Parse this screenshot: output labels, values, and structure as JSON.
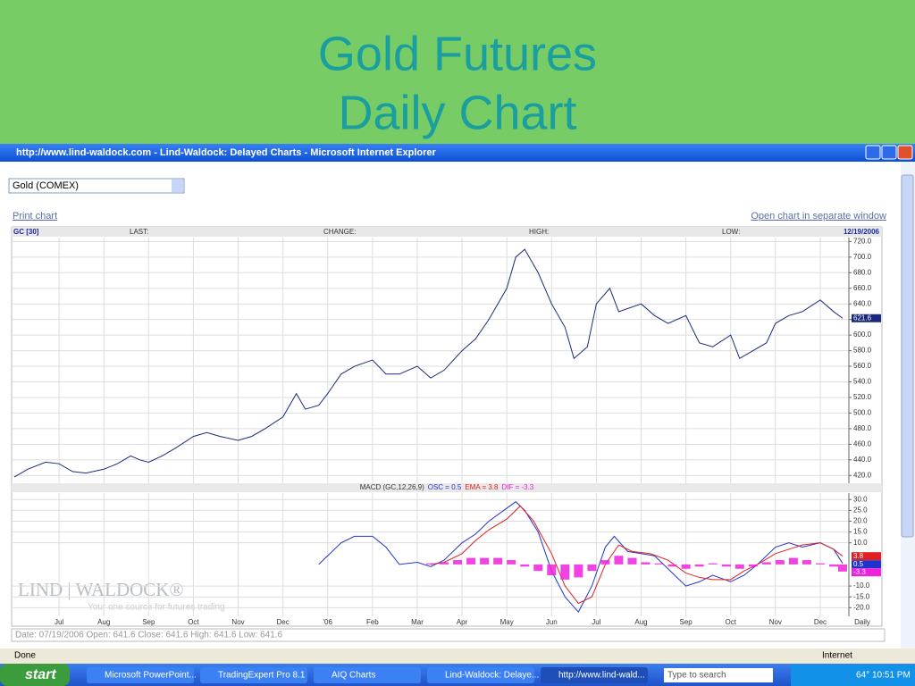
{
  "slide": {
    "title_lines": [
      "Gold Futures",
      "Daily Chart"
    ]
  },
  "browser": {
    "window_title": "http://www.lind-waldock.com - Lind-Waldock: Delayed Charts - Microsoft Internet Explorer",
    "dropdown": "Gold (COMEX)",
    "print_link": "Print chart",
    "open_link": "Open chart in separate window",
    "watermark": "LIND | WALDOCK®",
    "watermark_tagline": "Your one source for futures trading",
    "info_line": "Date: 07/19/2006 Open: 641.6 Close: 641.6 High: 641.6 Low: 641.6",
    "status": "Done",
    "zone": "Internet"
  },
  "taskbar": {
    "start": "start",
    "buttons": [
      "Microsoft PowerPoint...",
      "TradingExpert Pro 8.1",
      "AIQ Charts",
      "Lind-Waldock: Delaye...",
      "http://www.lind-wald..."
    ],
    "search": "Type to search",
    "temperature": "64°",
    "clock": "10:51 PM"
  },
  "chart_data": [
    {
      "type": "line",
      "symbol": "GC [30]",
      "fields": [
        "LAST:",
        "CHANGE:",
        "HIGH:",
        "LOW:"
      ],
      "date": "12/19/2006",
      "xlim": [
        -1.06,
        17.64
      ],
      "ylim": [
        410,
        725
      ],
      "grid": true,
      "yticks": [
        {
          "value": 420,
          "label": "420.0"
        },
        {
          "value": 440,
          "label": "440.0"
        },
        {
          "value": 460,
          "label": "460.0"
        },
        {
          "value": 480,
          "label": "480.0"
        },
        {
          "value": 500,
          "label": "500.0"
        },
        {
          "value": 520,
          "label": "520.0"
        },
        {
          "value": 540,
          "label": "540.0"
        },
        {
          "value": 560,
          "label": "560.0"
        },
        {
          "value": 580,
          "label": "580.0"
        },
        {
          "value": 600,
          "label": "600.0"
        },
        {
          "value": 620,
          "label": "620.0"
        },
        {
          "value": 640,
          "label": "640.0"
        },
        {
          "value": 660,
          "label": "660.0"
        },
        {
          "value": 680,
          "label": "680.0"
        },
        {
          "value": 700,
          "label": "700.0"
        },
        {
          "value": 720,
          "label": "720.0"
        }
      ],
      "series": [
        {
          "color": "#1a2a7a",
          "x": [
            -1.0,
            -0.7,
            -0.3,
            0,
            0.3,
            0.6,
            1.0,
            1.3,
            1.6,
            1.8,
            2.0,
            2.3,
            2.6,
            3.0,
            3.3,
            3.6,
            4.0,
            4.3,
            4.6,
            5.0,
            5.3,
            5.5,
            5.8,
            6.0,
            6.3,
            6.6,
            7.0,
            7.3,
            7.6,
            8.0,
            8.3,
            8.6,
            9.0,
            9.3,
            9.6,
            10.0,
            10.2,
            10.4,
            10.7,
            11.0,
            11.3,
            11.5,
            11.8,
            12.0,
            12.3,
            12.5,
            13.0,
            13.3,
            13.6,
            14.0,
            14.3,
            14.6,
            15.0,
            15.2,
            15.5,
            15.8,
            16.0,
            16.3,
            16.6,
            17.0,
            17.3,
            17.5
          ],
          "values": [
            418,
            428,
            437,
            435,
            425,
            423,
            428,
            435,
            445,
            440,
            437,
            445,
            455,
            470,
            475,
            470,
            465,
            470,
            480,
            495,
            525,
            505,
            510,
            525,
            550,
            560,
            568,
            550,
            550,
            560,
            545,
            555,
            580,
            595,
            620,
            660,
            700,
            710,
            680,
            640,
            610,
            570,
            585,
            640,
            660,
            630,
            640,
            625,
            615,
            625,
            590,
            585,
            600,
            570,
            580,
            590,
            615,
            625,
            630,
            645,
            630,
            621.6
          ]
        }
      ]
    },
    {
      "type": "line",
      "title": "MACD (GC,12,26,9)",
      "x_label": "Daily",
      "xlim": [
        -1.06,
        17.64
      ],
      "ylim": [
        -24,
        33
      ],
      "grid": true,
      "xticks": [
        {
          "value": 0,
          "label": "Jul"
        },
        {
          "value": 1,
          "label": "Aug"
        },
        {
          "value": 2,
          "label": "Sep"
        },
        {
          "value": 3,
          "label": "Oct"
        },
        {
          "value": 4,
          "label": "Nov"
        },
        {
          "value": 5,
          "label": "Dec"
        },
        {
          "value": 6,
          "label": "'06"
        },
        {
          "value": 7,
          "label": "Feb"
        },
        {
          "value": 8,
          "label": "Mar"
        },
        {
          "value": 9,
          "label": "Apr"
        },
        {
          "value": 10,
          "label": "May"
        },
        {
          "value": 11,
          "label": "Jun"
        },
        {
          "value": 12,
          "label": "Jul"
        },
        {
          "value": 13,
          "label": "Aug"
        },
        {
          "value": 14,
          "label": "Sep"
        },
        {
          "value": 15,
          "label": "Oct"
        },
        {
          "value": 16,
          "label": "Nov"
        },
        {
          "value": 17,
          "label": "Dec"
        }
      ],
      "yticks": [
        {
          "value": 30,
          "label": "30.0"
        },
        {
          "value": 25,
          "label": "25.0"
        },
        {
          "value": 20,
          "label": "20.0"
        },
        {
          "value": 15,
          "label": "15.0"
        },
        {
          "value": 10,
          "label": "10.0"
        },
        {
          "value": -10,
          "label": "-10.0"
        },
        {
          "value": -15,
          "label": "-15.0"
        },
        {
          "value": -20,
          "label": "-20.0"
        }
      ],
      "series": [
        {
          "name": "OSC = 0.5",
          "color": "#2233cc",
          "x": [
            5.8,
            6.3,
            6.6,
            7.0,
            7.3,
            7.6,
            8.0,
            8.3,
            8.6,
            9.0,
            9.3,
            9.6,
            10.0,
            10.2,
            10.4,
            10.7,
            11.0,
            11.3,
            11.6,
            11.9,
            12.2,
            12.4,
            12.7,
            13.0,
            13.3,
            13.6,
            14.0,
            14.3,
            14.6,
            15.0,
            15.3,
            15.6,
            16.0,
            16.3,
            16.6,
            17.0,
            17.3,
            17.5
          ],
          "values": [
            0,
            10,
            13,
            13,
            8,
            0,
            1,
            -1,
            2,
            10,
            14,
            20,
            26,
            29,
            25,
            15,
            -3,
            -15,
            -22,
            -10,
            8,
            13,
            6,
            5,
            4,
            -2,
            -10,
            -8,
            -5,
            -8,
            -5,
            0,
            8,
            10,
            8,
            10,
            7,
            0.5
          ]
        },
        {
          "name": "EMA = 3.8",
          "color": "#e02020",
          "x": [
            8.3,
            8.6,
            9.0,
            9.3,
            9.6,
            10.0,
            10.3,
            10.6,
            11.0,
            11.3,
            11.6,
            11.9,
            12.2,
            12.5,
            12.8,
            13.2,
            13.6,
            14.0,
            14.3,
            14.6,
            15.0,
            15.3,
            15.6,
            16.0,
            16.3,
            16.6,
            17.0,
            17.3,
            17.5
          ],
          "values": [
            0,
            1,
            5,
            11,
            16,
            21,
            27,
            20,
            5,
            -10,
            -18,
            -15,
            0,
            9,
            6,
            5,
            2,
            -4,
            -6,
            -7,
            -7,
            -3,
            0,
            5,
            7,
            9,
            10,
            7,
            3.8
          ]
        },
        {
          "name": "DIF = -3.3",
          "color": "#ee22dd",
          "type": "bar",
          "x": [
            8.3,
            8.6,
            8.9,
            9.2,
            9.5,
            9.8,
            10.1,
            10.4,
            10.7,
            11.0,
            11.3,
            11.6,
            11.9,
            12.2,
            12.5,
            12.8,
            13.1,
            13.4,
            13.7,
            14.0,
            14.3,
            14.6,
            14.9,
            15.2,
            15.5,
            15.8,
            16.1,
            16.4,
            16.7,
            17.0,
            17.3,
            17.5
          ],
          "values": [
            0.5,
            1,
            2,
            3,
            3,
            3,
            2,
            -1,
            -3,
            -5,
            -7,
            -6,
            -3,
            2,
            4,
            3,
            1,
            0.5,
            -1,
            -2,
            -1,
            0.5,
            -1,
            -2,
            -1,
            1,
            2,
            3,
            2,
            0.5,
            -1,
            -3.3
          ]
        }
      ]
    }
  ]
}
